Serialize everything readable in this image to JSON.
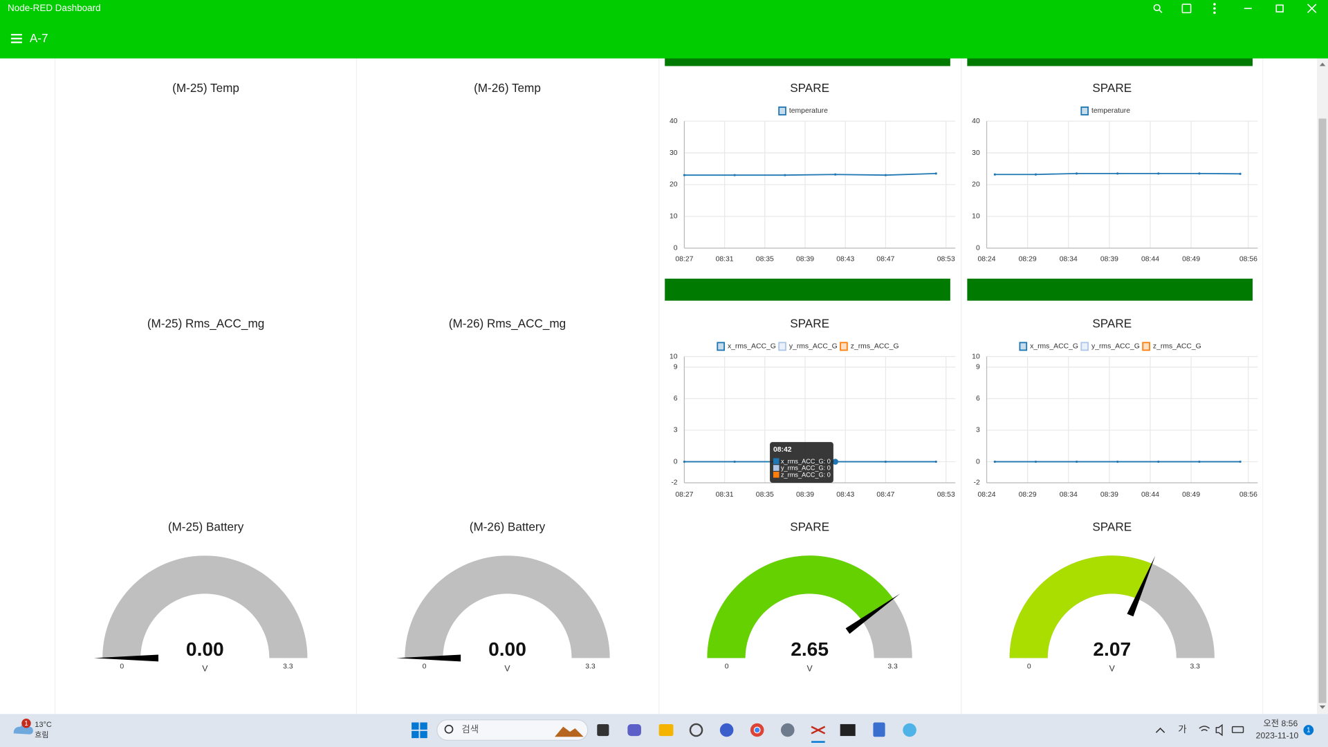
{
  "window": {
    "title": "Node-RED Dashboard"
  },
  "toolbar": {
    "title": "A-7"
  },
  "rows": [
    [
      {
        "title": "(M-25) Temp"
      },
      {
        "title": "(M-26) Temp"
      },
      {
        "title": "SPARE",
        "type": "line",
        "xlim": [
          "08:27",
          "08:53"
        ],
        "xticks": [
          "08:27",
          "08:31",
          "08:35",
          "08:39",
          "08:43",
          "08:47",
          "08:53"
        ],
        "ylim": [
          0,
          40
        ],
        "yticks": [
          0,
          10,
          20,
          30,
          40
        ],
        "grid": true,
        "series": [
          {
            "name": "temperature",
            "color": "#1f77b4",
            "x": [
              "08:27",
              "08:32",
              "08:37",
              "08:42",
              "08:47",
              "08:52"
            ],
            "values": [
              23,
              23,
              23,
              23.2,
              23,
              23.5
            ]
          }
        ]
      },
      {
        "title": "SPARE",
        "type": "line",
        "xlim": [
          "08:24",
          "08:56"
        ],
        "xticks": [
          "08:24",
          "08:29",
          "08:34",
          "08:39",
          "08:44",
          "08:49",
          "08:56"
        ],
        "ylim": [
          0,
          40
        ],
        "yticks": [
          0,
          10,
          20,
          30,
          40
        ],
        "grid": true,
        "series": [
          {
            "name": "temperature",
            "color": "#1f77b4",
            "x": [
              "08:25",
              "08:30",
              "08:35",
              "08:40",
              "08:45",
              "08:50",
              "08:55"
            ],
            "values": [
              23.2,
              23.2,
              23.5,
              23.5,
              23.5,
              23.5,
              23.4
            ]
          }
        ]
      }
    ],
    [
      {
        "title": "(M-25) Rms_ACC_mg"
      },
      {
        "title": "(M-26) Rms_ACC_mg"
      },
      {
        "title": "SPARE",
        "type": "line",
        "xlim": [
          "08:27",
          "08:53"
        ],
        "xticks": [
          "08:27",
          "08:31",
          "08:35",
          "08:39",
          "08:43",
          "08:47",
          "08:53"
        ],
        "ylim": [
          -2,
          10
        ],
        "yticks": [
          -2,
          0,
          3,
          6,
          9,
          10
        ],
        "grid": true,
        "series": [
          {
            "name": "x_rms_ACC_G",
            "color": "#1f77b4",
            "x": [
              "08:27",
              "08:32",
              "08:37",
              "08:42",
              "08:47",
              "08:52"
            ],
            "values": [
              0,
              0,
              0,
              0,
              0,
              0
            ]
          },
          {
            "name": "y_rms_ACC_G",
            "color": "#aec7e8",
            "x": [
              "08:27",
              "08:32",
              "08:37",
              "08:42",
              "08:47",
              "08:52"
            ],
            "values": [
              0,
              0,
              0,
              0,
              0,
              0
            ]
          },
          {
            "name": "z_rms_ACC_G",
            "color": "#ff7f0e",
            "x": [
              "08:27",
              "08:32",
              "08:37",
              "08:42",
              "08:47",
              "08:52"
            ],
            "values": [
              0,
              0,
              0,
              0,
              0,
              0
            ]
          }
        ],
        "tooltip": {
          "title": "08:42",
          "items": [
            "x_rms_ACC_G: 0",
            "y_rms_ACC_G: 0",
            "z_rms_ACC_G: 0"
          ]
        }
      },
      {
        "title": "SPARE",
        "type": "line",
        "xlim": [
          "08:24",
          "08:56"
        ],
        "xticks": [
          "08:24",
          "08:29",
          "08:34",
          "08:39",
          "08:44",
          "08:49",
          "08:56"
        ],
        "ylim": [
          -2,
          10
        ],
        "yticks": [
          -2,
          0,
          3,
          6,
          9,
          10
        ],
        "grid": true,
        "series": [
          {
            "name": "x_rms_ACC_G",
            "color": "#1f77b4",
            "x": [
              "08:25",
              "08:30",
              "08:35",
              "08:40",
              "08:45",
              "08:50",
              "08:55"
            ],
            "values": [
              0,
              0,
              0,
              0,
              0,
              0,
              0
            ]
          },
          {
            "name": "y_rms_ACC_G",
            "color": "#aec7e8",
            "x": [
              "08:25",
              "08:30",
              "08:35",
              "08:40",
              "08:45",
              "08:50",
              "08:55"
            ],
            "values": [
              0,
              0,
              0,
              0,
              0,
              0,
              0
            ]
          },
          {
            "name": "z_rms_ACC_G",
            "color": "#ff7f0e",
            "x": [
              "08:25",
              "08:30",
              "08:35",
              "08:40",
              "08:45",
              "08:50",
              "08:55"
            ],
            "values": [
              0,
              0,
              0,
              0,
              0,
              0,
              0
            ]
          }
        ]
      }
    ],
    [
      {
        "title": "(M-25) Battery",
        "type": "gauge",
        "value": 0,
        "value_label": "0.00",
        "units": "V",
        "min": 0,
        "max": 3.3,
        "color": "#00b500"
      },
      {
        "title": "(M-26) Battery",
        "type": "gauge",
        "value": 0,
        "value_label": "0.00",
        "units": "V",
        "min": 0,
        "max": 3.3,
        "color": "#00b500"
      },
      {
        "title": "SPARE",
        "type": "gauge",
        "value": 2.65,
        "value_label": "2.65",
        "units": "V",
        "min": 0,
        "max": 3.3,
        "color": "#66d100"
      },
      {
        "title": "SPARE",
        "type": "gauge",
        "value": 2.07,
        "value_label": "2.07",
        "units": "V",
        "min": 0,
        "max": 3.3,
        "color": "#aadd00"
      }
    ]
  ],
  "taskbar": {
    "weather": {
      "badge": "1",
      "temp": "13°C",
      "condition": "흐림"
    },
    "search": "검색",
    "ime": "가",
    "clock": {
      "time": "오전 8:56",
      "date": "2023-11-10"
    },
    "notifications": "1"
  }
}
